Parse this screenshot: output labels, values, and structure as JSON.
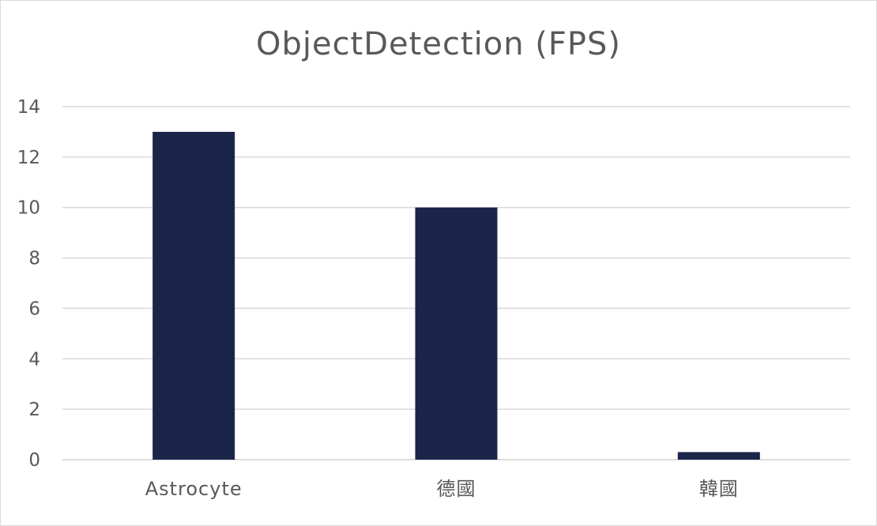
{
  "chart_data": {
    "type": "bar",
    "title": "ObjectDetection (FPS)",
    "xlabel": "",
    "ylabel": "",
    "categories": [
      "Astrocyte",
      "德國",
      "韓國"
    ],
    "values": [
      13,
      10,
      0.3
    ],
    "ylim": [
      0,
      14
    ],
    "yticks": [
      0,
      2,
      4,
      6,
      8,
      10,
      12,
      14
    ],
    "grid": true,
    "legend": "none",
    "bar_color": "#1b2549"
  }
}
